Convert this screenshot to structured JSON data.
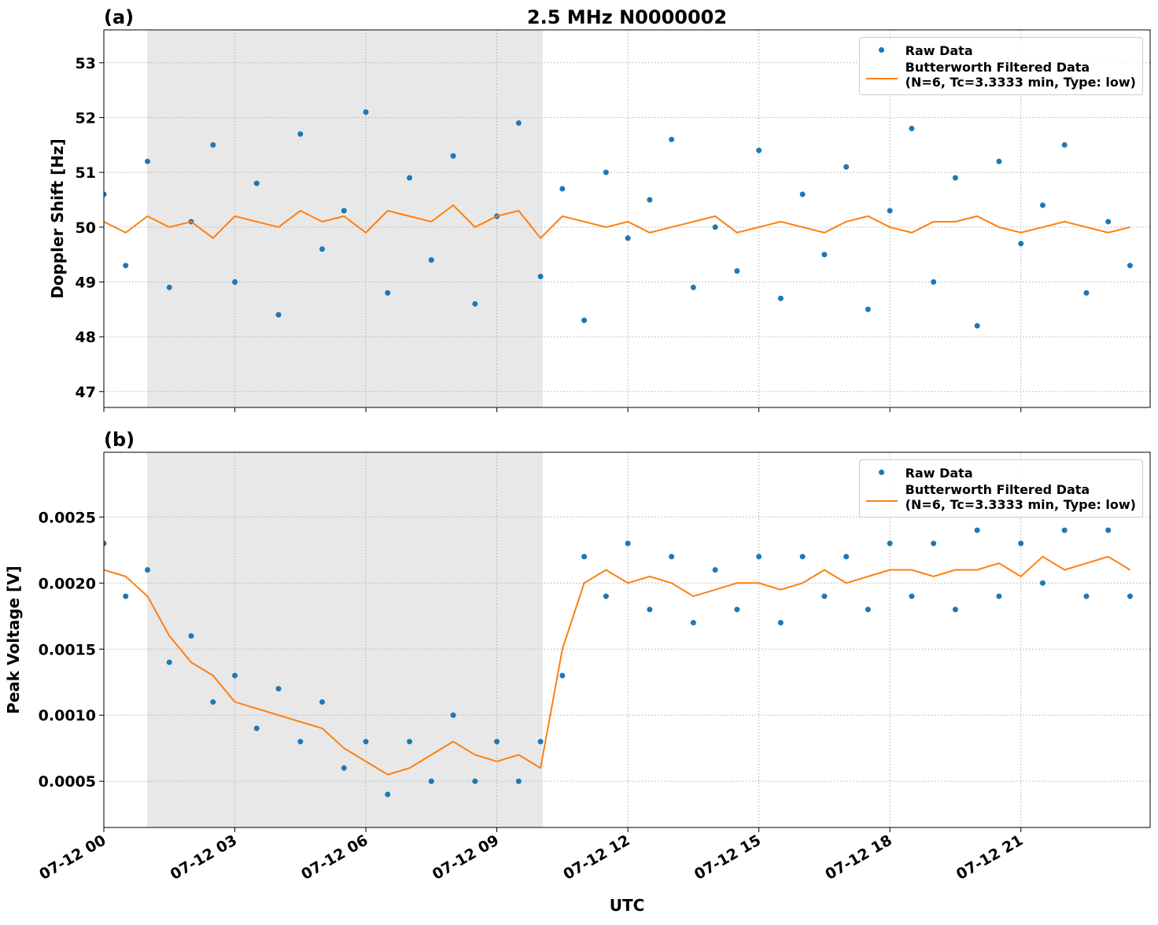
{
  "chart_data": [
    {
      "type": "scatter",
      "title": "2.5 MHz N0000002",
      "panel_label": "(a)",
      "ylabel": "Doppler Shift [Hz]",
      "x": [
        0,
        0.5,
        1,
        1.5,
        2,
        2.5,
        3,
        3.5,
        4,
        4.5,
        5,
        5.5,
        6,
        6.5,
        7,
        7.5,
        8,
        8.5,
        9,
        9.5,
        10,
        10.5,
        11,
        11.5,
        12,
        12.5,
        13,
        13.5,
        14,
        14.5,
        15,
        15.5,
        16,
        16.5,
        17,
        17.5,
        18,
        18.5,
        19,
        19.5,
        20,
        20.5,
        21,
        21.5,
        22,
        22.5,
        23,
        23.5
      ],
      "xlim": [
        0,
        23.96
      ],
      "ylim": [
        46.71,
        53.6
      ],
      "yticks": [
        47,
        48,
        49,
        50,
        51,
        52,
        53
      ],
      "grid": true,
      "shaded_span": [
        0.99,
        10.05
      ],
      "legend": "upper right",
      "series": [
        {
          "name": "Raw Data",
          "kind": "scatter",
          "color": "#1f77b4",
          "values": [
            50.6,
            49.3,
            51.2,
            48.9,
            50.1,
            51.5,
            49.0,
            50.8,
            48.4,
            51.7,
            49.6,
            50.3,
            52.1,
            48.8,
            50.9,
            49.4,
            51.3,
            48.6,
            50.2,
            51.9,
            49.1,
            50.7,
            48.3,
            51.0,
            49.8,
            50.5,
            51.6,
            48.9,
            50.0,
            49.2,
            51.4,
            48.7,
            50.6,
            49.5,
            51.1,
            48.5,
            50.3,
            51.8,
            49.0,
            50.9,
            48.2,
            51.2,
            49.7,
            50.4,
            51.5,
            48.8,
            50.1,
            49.3
          ]
        },
        {
          "name": "Butterworth Filtered Data\n(N=6, Tc=3.3333 min, Type: low)",
          "kind": "line",
          "color": "#ff7f0e",
          "values": [
            50.1,
            49.9,
            50.2,
            50.0,
            50.1,
            49.8,
            50.2,
            50.1,
            50.0,
            50.3,
            50.1,
            50.2,
            49.9,
            50.3,
            50.2,
            50.1,
            50.4,
            50.0,
            50.2,
            50.3,
            49.8,
            50.2,
            50.1,
            50.0,
            50.1,
            49.9,
            50.0,
            50.1,
            50.2,
            49.9,
            50.0,
            50.1,
            50.0,
            49.9,
            50.1,
            50.2,
            50.0,
            49.9,
            50.1,
            50.1,
            50.2,
            50.0,
            49.9,
            50.0,
            50.1,
            50.0,
            49.9,
            50.0
          ]
        }
      ]
    },
    {
      "type": "scatter",
      "panel_label": "(b)",
      "ylabel": "Peak Voltage [V]",
      "xlabel": "UTC",
      "x": [
        0,
        0.5,
        1,
        1.5,
        2,
        2.5,
        3,
        3.5,
        4,
        4.5,
        5,
        5.5,
        6,
        6.5,
        7,
        7.5,
        8,
        8.5,
        9,
        9.5,
        10,
        10.5,
        11,
        11.5,
        12,
        12.5,
        13,
        13.5,
        14,
        14.5,
        15,
        15.5,
        16,
        16.5,
        17,
        17.5,
        18,
        18.5,
        19,
        19.5,
        20,
        20.5,
        21,
        21.5,
        22,
        22.5,
        23,
        23.5
      ],
      "xlim": [
        0,
        23.96
      ],
      "ylim": [
        0.00015,
        0.00299
      ],
      "xticks": [
        {
          "value": 0,
          "label": "07-12 00"
        },
        {
          "value": 3,
          "label": "07-12 03"
        },
        {
          "value": 6,
          "label": "07-12 06"
        },
        {
          "value": 9,
          "label": "07-12 09"
        },
        {
          "value": 12,
          "label": "07-12 12"
        },
        {
          "value": 15,
          "label": "07-12 15"
        },
        {
          "value": 18,
          "label": "07-12 18"
        },
        {
          "value": 21,
          "label": "07-12 21"
        }
      ],
      "yticks": [
        0.0005,
        {
          "value": 0.001,
          "label": "0.0010"
        },
        0.0015,
        {
          "value": 0.002,
          "label": "0.0020"
        },
        0.0025
      ],
      "grid": true,
      "shaded_span": [
        0.99,
        10.05
      ],
      "legend": "upper right",
      "series": [
        {
          "name": "Raw Data",
          "kind": "scatter",
          "color": "#1f77b4",
          "values": [
            0.0023,
            0.0019,
            0.0021,
            0.0014,
            0.0016,
            0.0011,
            0.0013,
            0.0009,
            0.0012,
            0.0008,
            0.0011,
            0.0006,
            0.0008,
            0.0004,
            0.0008,
            0.0005,
            0.001,
            0.0005,
            0.0008,
            0.0005,
            0.0008,
            0.0013,
            0.0022,
            0.0019,
            0.0023,
            0.0018,
            0.0022,
            0.0017,
            0.0021,
            0.0018,
            0.0022,
            0.0017,
            0.0022,
            0.0019,
            0.0022,
            0.0018,
            0.0023,
            0.0019,
            0.0023,
            0.0018,
            0.0024,
            0.0019,
            0.0023,
            0.002,
            0.0024,
            0.0019,
            0.0024,
            0.0019
          ]
        },
        {
          "name": "Butterworth Filtered Data\n(N=6, Tc=3.3333 min, Type: low)",
          "kind": "line",
          "color": "#ff7f0e",
          "values": [
            0.0021,
            0.00205,
            0.0019,
            0.0016,
            0.0014,
            0.0013,
            0.0011,
            0.00105,
            0.001,
            0.00095,
            0.0009,
            0.00075,
            0.00065,
            0.00055,
            0.0006,
            0.0007,
            0.0008,
            0.0007,
            0.00065,
            0.0007,
            0.0006,
            0.0015,
            0.002,
            0.0021,
            0.002,
            0.00205,
            0.002,
            0.0019,
            0.00195,
            0.002,
            0.002,
            0.00195,
            0.002,
            0.0021,
            0.002,
            0.00205,
            0.0021,
            0.0021,
            0.00205,
            0.0021,
            0.0021,
            0.00215,
            0.00205,
            0.0022,
            0.0021,
            0.00215,
            0.0022,
            0.0021
          ]
        }
      ]
    }
  ]
}
